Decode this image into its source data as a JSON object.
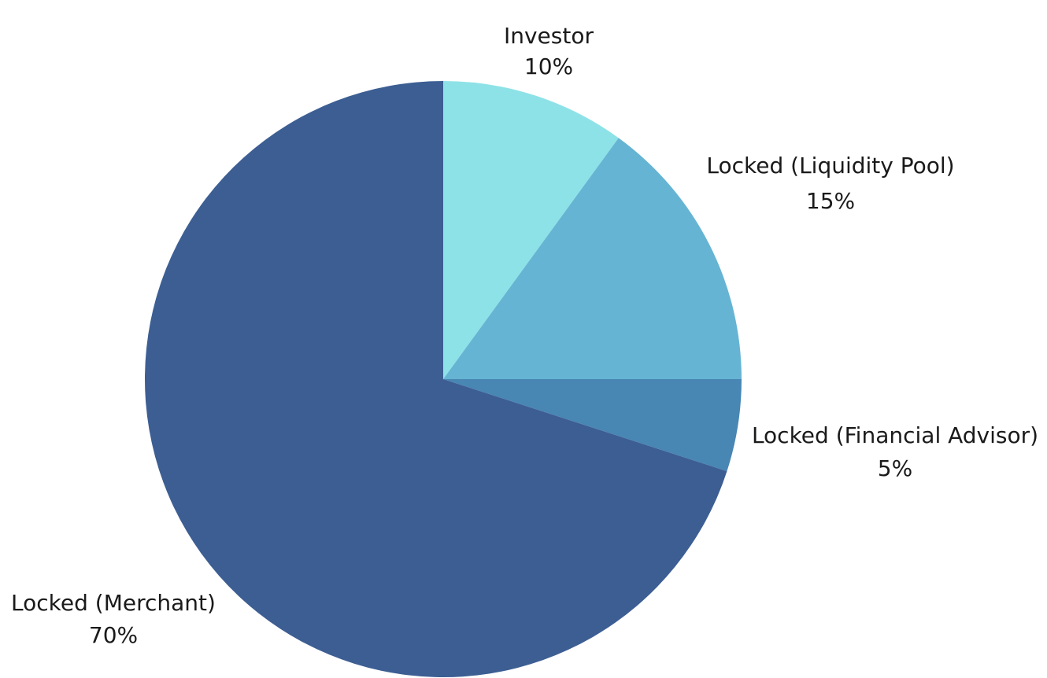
{
  "chart_data": {
    "type": "pie",
    "title": "",
    "slices": [
      {
        "name": "Investor",
        "value": 10,
        "label": "10%",
        "color": "#8de2e7"
      },
      {
        "name": "Locked (Liquidity Pool)",
        "value": 15,
        "label": "15%",
        "color": "#66b4d3"
      },
      {
        "name": "Locked (Financial Advisor)",
        "value": 5,
        "label": "5%",
        "color": "#4886b4"
      },
      {
        "name": "Locked (Merchant)",
        "value": 70,
        "label": "70%",
        "color": "#3c5e93"
      }
    ],
    "start_angle_deg": 0,
    "direction": "clockwise",
    "legend": "none"
  }
}
